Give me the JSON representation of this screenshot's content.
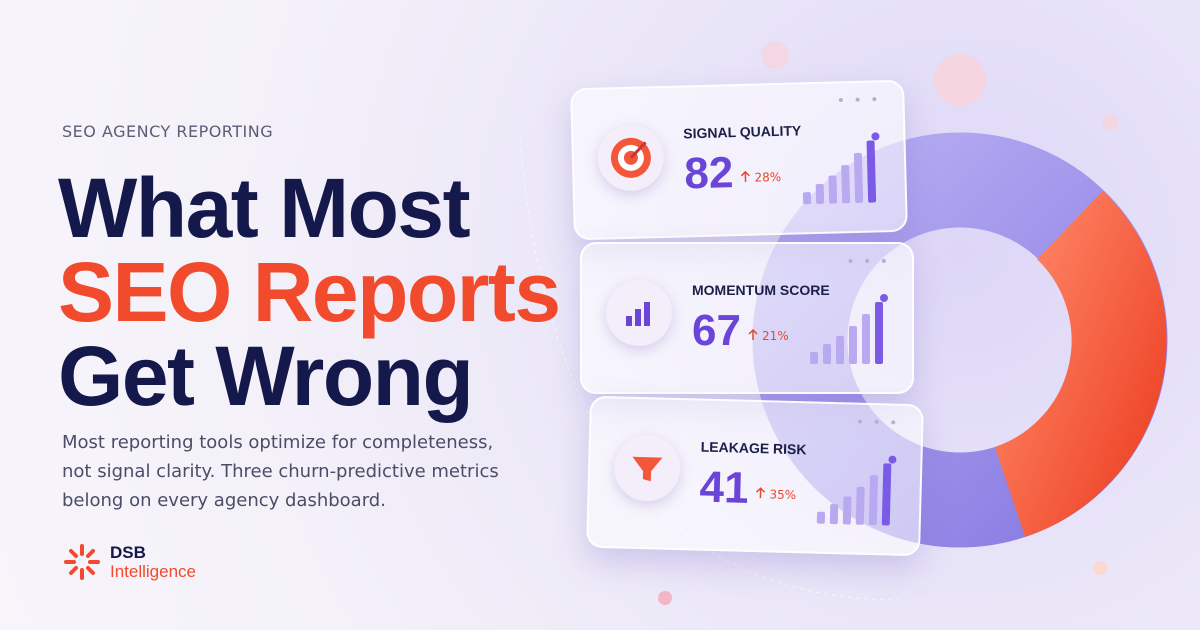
{
  "eyebrow": "SEO AGENCY REPORTING",
  "headline": [
    "What Most",
    "SEO Reports",
    "Get Wrong"
  ],
  "description": [
    "Most reporting tools optimize for completeness,",
    "not signal clarity. Three churn-predictive metrics",
    "belong on every agency dashboard."
  ],
  "logo": {
    "line1": "DSB",
    "line2": "Intelligence"
  },
  "cards": [
    {
      "label": "SIGNAL QUALITY",
      "value": "82",
      "change": "28%"
    },
    {
      "label": "MOMENTUM SCORE",
      "value": "67",
      "change": "21%"
    },
    {
      "label": "LEAKAGE RISK",
      "value": "41",
      "change": "35%"
    }
  ]
}
